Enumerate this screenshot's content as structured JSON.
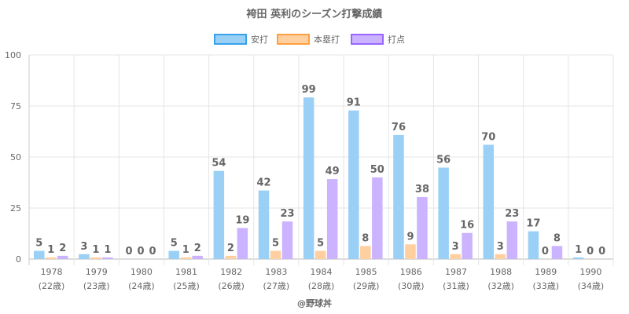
{
  "chart_data": {
    "type": "bar",
    "title": "袴田 英利のシーズン打撃成績",
    "categories": [
      "1978",
      "1979",
      "1980",
      "1981",
      "1982",
      "1983",
      "1984",
      "1985",
      "1986",
      "1987",
      "1988",
      "1989",
      "1990"
    ],
    "sublabels": [
      "(22歳)",
      "(23歳)",
      "(24歳)",
      "(25歳)",
      "(26歳)",
      "(27歳)",
      "(28歳)",
      "(29歳)",
      "(30歳)",
      "(31歳)",
      "(32歳)",
      "(33歳)",
      "(34歳)"
    ],
    "series": [
      {
        "name": "安打",
        "values": [
          5,
          3,
          0,
          5,
          54,
          42,
          99,
          91,
          76,
          56,
          70,
          17,
          1
        ],
        "fill": "#9ad0f5",
        "stroke": "#36a2eb"
      },
      {
        "name": "本塁打",
        "values": [
          1,
          1,
          0,
          1,
          2,
          5,
          5,
          8,
          9,
          3,
          3,
          0,
          0
        ],
        "fill": "#ffcf9f",
        "stroke": "#ff9f40"
      },
      {
        "name": "打点",
        "values": [
          2,
          1,
          0,
          2,
          19,
          23,
          49,
          50,
          38,
          16,
          23,
          8,
          0
        ],
        "fill": "#cbb3ff",
        "stroke": "#9966ff"
      }
    ],
    "ylim": [
      0,
      100
    ],
    "yticks": [
      0,
      25,
      50,
      75,
      100
    ],
    "xlabel": "",
    "ylabel": "",
    "grid": true,
    "legend_position": "top-center",
    "credit": "@野球丼"
  }
}
